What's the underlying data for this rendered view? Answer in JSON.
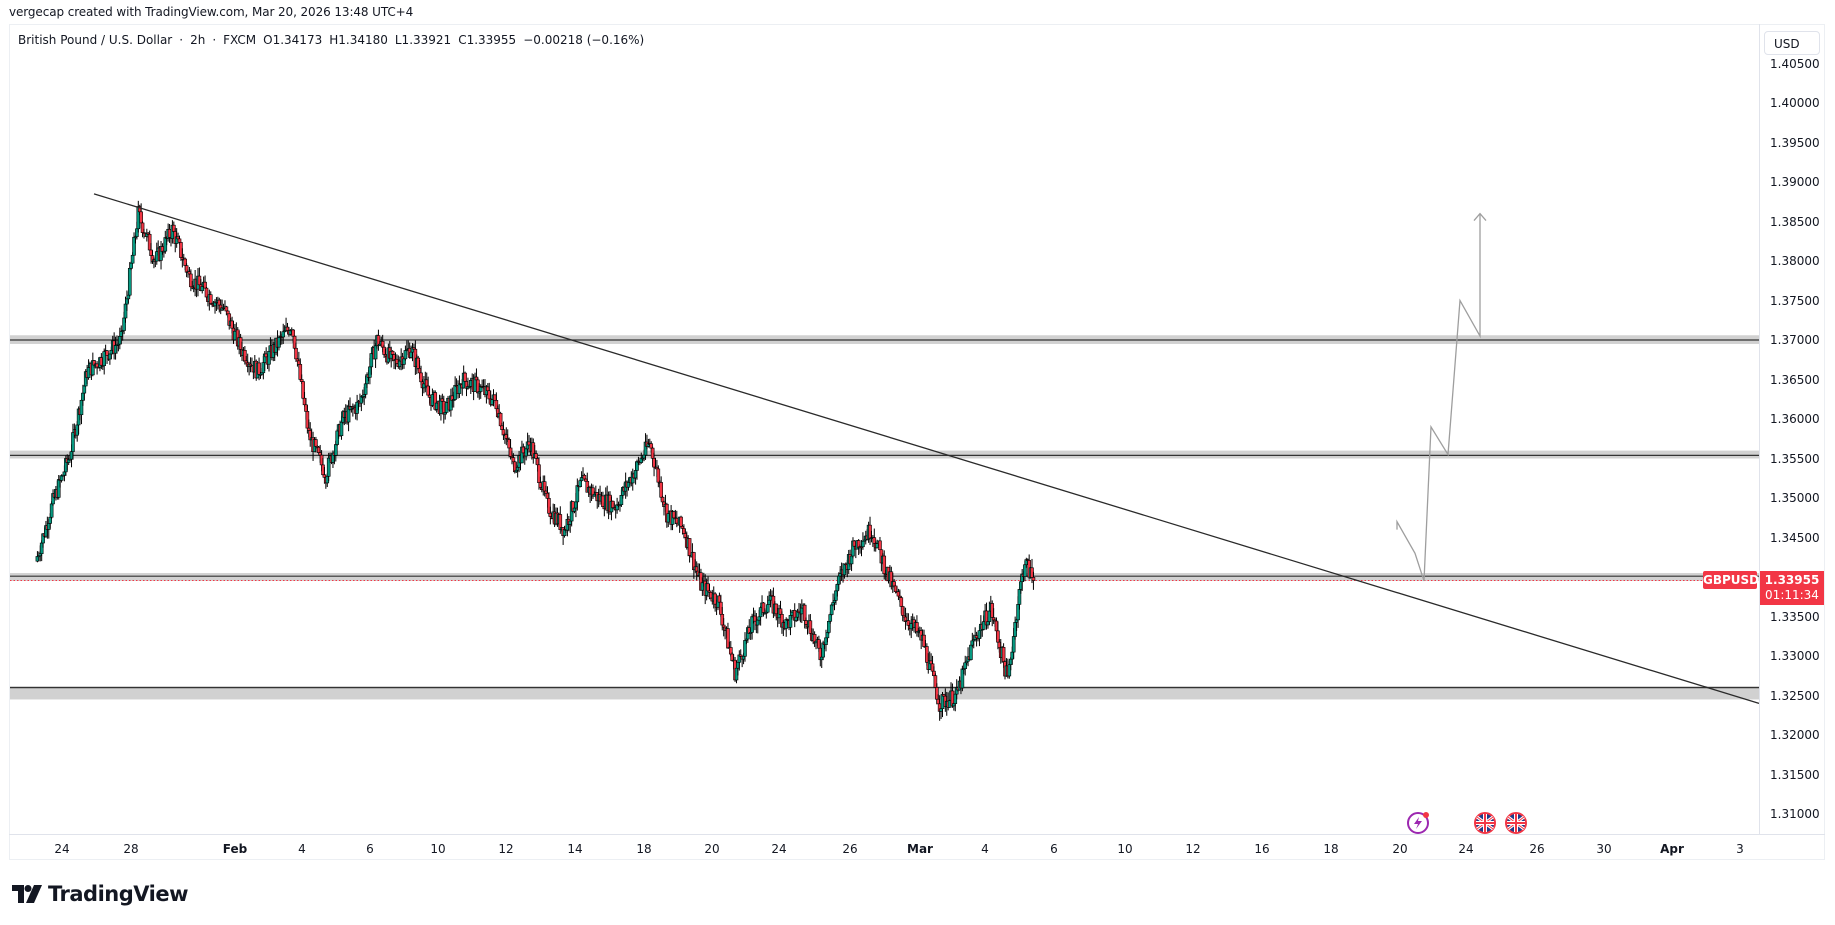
{
  "credit": "vergecap created with TradingView.com, Mar 20, 2026 13:48 UTC+4",
  "legend": {
    "symbol_name": "British Pound / U.S. Dollar",
    "interval": "2h",
    "exchange": "FXCM",
    "open": "O1.34173",
    "high": "H1.34180",
    "low": "L1.33921",
    "close": "C1.33955",
    "change": "−0.00218 (−0.16%)",
    "separator": "·"
  },
  "price_axis": {
    "currency": "USD",
    "ticks": [
      "1.40500",
      "1.40000",
      "1.39500",
      "1.39000",
      "1.38500",
      "1.38000",
      "1.37500",
      "1.37000",
      "1.36500",
      "1.36000",
      "1.35500",
      "1.35000",
      "1.34500",
      "1.33500",
      "1.33000",
      "1.32500",
      "1.32000",
      "1.31500",
      "1.31000"
    ]
  },
  "last_price": {
    "symbol": "GBPUSD",
    "price": "1.33955",
    "countdown": "01:11:34",
    "color": "#f23645"
  },
  "time_axis": {
    "ticks": [
      {
        "label": "24",
        "major": false
      },
      {
        "label": "28",
        "major": false
      },
      {
        "label": "Feb",
        "major": true
      },
      {
        "label": "4",
        "major": false
      },
      {
        "label": "6",
        "major": false
      },
      {
        "label": "10",
        "major": false
      },
      {
        "label": "12",
        "major": false
      },
      {
        "label": "14",
        "major": false
      },
      {
        "label": "18",
        "major": false
      },
      {
        "label": "20",
        "major": false
      },
      {
        "label": "24",
        "major": false
      },
      {
        "label": "26",
        "major": false
      },
      {
        "label": "Mar",
        "major": true
      },
      {
        "label": "4",
        "major": false
      },
      {
        "label": "6",
        "major": false
      },
      {
        "label": "10",
        "major": false
      },
      {
        "label": "12",
        "major": false
      },
      {
        "label": "16",
        "major": false
      },
      {
        "label": "18",
        "major": false
      },
      {
        "label": "20",
        "major": false
      },
      {
        "label": "24",
        "major": false
      },
      {
        "label": "26",
        "major": false
      },
      {
        "label": "30",
        "major": false
      },
      {
        "label": "Apr",
        "major": true
      },
      {
        "label": "3",
        "major": false
      }
    ]
  },
  "events": [
    {
      "type": "earnings-lightning",
      "color": "#9c27b0"
    },
    {
      "type": "uk-flag",
      "color": "#f23645"
    },
    {
      "type": "uk-flag",
      "color": "#f23645"
    }
  ],
  "branding": {
    "logo_text": "TradingView"
  },
  "colors": {
    "up": "#089981",
    "down": "#f23645",
    "zone": "#d1d1d1",
    "line": "#2a2a2a",
    "projection": "#9e9e9e"
  },
  "chart_data": {
    "type": "candlestick",
    "title": "British Pound / U.S. Dollar · 2h · FXCM",
    "symbol": "GBPUSD",
    "timeframe": "2h",
    "ylabel": "USD",
    "ylim": [
      1.305,
      1.406
    ],
    "x_range": [
      "Jan 22",
      "Apr 3"
    ],
    "grid": false,
    "last": {
      "open": 1.34173,
      "high": 1.3418,
      "low": 1.33921,
      "close": 1.33955,
      "change": -0.00218,
      "change_pct": -0.16
    },
    "price_path": [
      {
        "date": "Jan 22",
        "price": 1.342
      },
      {
        "date": "Jan 23",
        "price": 1.3495
      },
      {
        "date": "Jan 24",
        "price": 1.3555
      },
      {
        "date": "Jan 25",
        "price": 1.366
      },
      {
        "date": "Jan 26",
        "price": 1.368
      },
      {
        "date": "Jan 27",
        "price": 1.37
      },
      {
        "date": "Jan 28",
        "price": 1.386
      },
      {
        "date": "Jan 29",
        "price": 1.38
      },
      {
        "date": "Jan 30",
        "price": 1.384
      },
      {
        "date": "Jan 31",
        "price": 1.378
      },
      {
        "date": "Feb 1",
        "price": 1.374
      },
      {
        "date": "Feb 2",
        "price": 1.369
      },
      {
        "date": "Feb 3",
        "price": 1.366
      },
      {
        "date": "Feb 4",
        "price": 1.369
      },
      {
        "date": "Feb 5",
        "price": 1.372
      },
      {
        "date": "Feb 6",
        "price": 1.358
      },
      {
        "date": "Feb 7",
        "price": 1.353
      },
      {
        "date": "Feb 8",
        "price": 1.36
      },
      {
        "date": "Feb 9",
        "price": 1.362
      },
      {
        "date": "Feb 10",
        "price": 1.37
      },
      {
        "date": "Feb 11",
        "price": 1.367
      },
      {
        "date": "Feb 12",
        "price": 1.369
      },
      {
        "date": "Feb 13",
        "price": 1.363
      },
      {
        "date": "Feb 14",
        "price": 1.361
      },
      {
        "date": "Feb 15",
        "price": 1.365
      },
      {
        "date": "Feb 16",
        "price": 1.364
      },
      {
        "date": "Feb 17",
        "price": 1.362
      },
      {
        "date": "Feb 18",
        "price": 1.354
      },
      {
        "date": "Feb 19",
        "price": 1.357
      },
      {
        "date": "Feb 20",
        "price": 1.349
      },
      {
        "date": "Feb 21",
        "price": 1.346
      },
      {
        "date": "Feb 22",
        "price": 1.352
      },
      {
        "date": "Feb 23",
        "price": 1.35
      },
      {
        "date": "Feb 24",
        "price": 1.349
      },
      {
        "date": "Feb 25",
        "price": 1.353
      },
      {
        "date": "Feb 26",
        "price": 1.357
      },
      {
        "date": "Feb 27",
        "price": 1.348
      },
      {
        "date": "Feb 28",
        "price": 1.346
      },
      {
        "date": "Mar 1",
        "price": 1.339
      },
      {
        "date": "Mar 2",
        "price": 1.337
      },
      {
        "date": "Mar 3",
        "price": 1.328
      },
      {
        "date": "Mar 4",
        "price": 1.334
      },
      {
        "date": "Mar 5",
        "price": 1.337
      },
      {
        "date": "Mar 6",
        "price": 1.334
      },
      {
        "date": "Mar 7",
        "price": 1.336
      },
      {
        "date": "Mar 8",
        "price": 1.33
      },
      {
        "date": "Mar 9",
        "price": 1.339
      },
      {
        "date": "Mar 10",
        "price": 1.344
      },
      {
        "date": "Mar 11",
        "price": 1.346
      },
      {
        "date": "Mar 12",
        "price": 1.34
      },
      {
        "date": "Mar 13",
        "price": 1.335
      },
      {
        "date": "Mar 14",
        "price": 1.332
      },
      {
        "date": "Mar 15",
        "price": 1.324
      },
      {
        "date": "Mar 16",
        "price": 1.325
      },
      {
        "date": "Mar 17",
        "price": 1.332
      },
      {
        "date": "Mar 18",
        "price": 1.336
      },
      {
        "date": "Mar 19",
        "price": 1.327
      },
      {
        "date": "Mar 19.6",
        "price": 1.337
      },
      {
        "date": "Mar 20",
        "price": 1.342
      },
      {
        "date": "Mar 20.5",
        "price": 1.33955
      }
    ],
    "drawings": {
      "horizontal_zones": [
        {
          "line": 1.37,
          "from": 1.3695,
          "to": 1.3706
        },
        {
          "line": 1.3554,
          "from": 1.355,
          "to": 1.356
        },
        {
          "line": 1.3401,
          "from": 1.3395,
          "to": 1.3405
        },
        {
          "line": 1.326,
          "from": 1.3245,
          "to": 1.3262
        }
      ],
      "trendline": {
        "start": {
          "date": "Jan 26.5",
          "price": 1.3885
        },
        "end": {
          "date": "Apr 3.7",
          "price": 1.324
        }
      },
      "projection_path": [
        1.3395,
        1.347,
        1.343,
        1.3395,
        1.359,
        1.3555,
        1.375,
        1.3705,
        1.386
      ],
      "projection_arrow": "up"
    },
    "annotations": [
      "GBPUSD 1.33955",
      "01:11:34"
    ]
  }
}
